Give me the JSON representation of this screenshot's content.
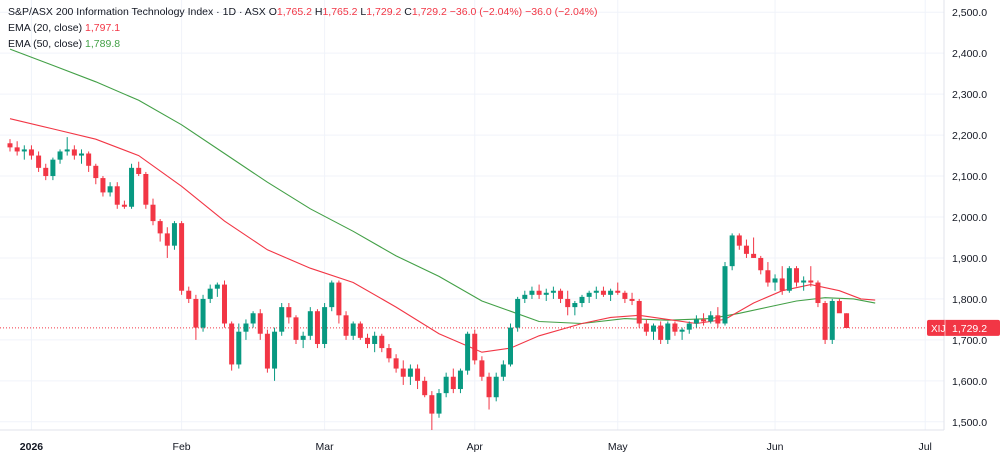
{
  "header": {
    "symbol_line": "S&P/ASX 200 Information Technology Index · 1D · ASX",
    "o_label": "O",
    "o_value": "1,765.2",
    "h_label": "H",
    "h_value": "1,765.2",
    "l_label": "L",
    "l_value": "1,729.2",
    "c_label": "C",
    "c_value": "1,729.2",
    "change": "−36.0 (−2.04%)",
    "change_repeat": "−36.0 (−2.04%)"
  },
  "indicators": [
    {
      "label": "EMA (20, close)",
      "value": "1,797.1",
      "color": "#f23645"
    },
    {
      "label": "EMA (50, close)",
      "value": "1,789.8",
      "color": "#43a047"
    }
  ],
  "price_tag": {
    "symbol": "XIJ",
    "value": "1,729.2",
    "color": "#f23645"
  },
  "colors": {
    "up": "#089981",
    "down": "#f23645",
    "ema20": "#f23645",
    "ema50": "#43a047",
    "grid": "#f0f3fa",
    "axis_text": "#131722"
  },
  "chart_data": {
    "type": "candlestick",
    "title": "S&P/ASX 200 Information Technology Index · 1D · ASX",
    "y_axis": {
      "min": 1480,
      "max": 2520,
      "ticks": [
        1500,
        1600,
        1700,
        1800,
        1900,
        2000,
        2100,
        2200,
        2300,
        2400,
        2500
      ],
      "tick_labels": [
        "1,500.0",
        "1,600.0",
        "1,700.0",
        "1,800.0",
        "1,900.0",
        "2,000.0",
        "2,100.0",
        "2,200.0",
        "2,300.0",
        "2,400.0",
        "2,500.0"
      ],
      "position": "right"
    },
    "x_axis": {
      "tick_labels": [
        "2026",
        "Feb",
        "Mar",
        "Apr",
        "May",
        "Jun",
        "Jul"
      ],
      "tick_index": [
        3,
        24,
        44,
        65,
        85,
        107,
        128
      ]
    },
    "grid": true,
    "last_price": 1729.2,
    "candles": [
      [
        2180,
        2190,
        2160,
        2170
      ],
      [
        2170,
        2185,
        2150,
        2160
      ],
      [
        2160,
        2175,
        2140,
        2165
      ],
      [
        2165,
        2175,
        2140,
        2150
      ],
      [
        2150,
        2160,
        2110,
        2120
      ],
      [
        2120,
        2130,
        2090,
        2100
      ],
      [
        2100,
        2145,
        2090,
        2140
      ],
      [
        2140,
        2165,
        2130,
        2160
      ],
      [
        2160,
        2195,
        2150,
        2165
      ],
      [
        2165,
        2175,
        2140,
        2150
      ],
      [
        2150,
        2165,
        2130,
        2155
      ],
      [
        2155,
        2160,
        2110,
        2125
      ],
      [
        2125,
        2130,
        2080,
        2095
      ],
      [
        2095,
        2100,
        2050,
        2060
      ],
      [
        2060,
        2085,
        2050,
        2075
      ],
      [
        2075,
        2085,
        2020,
        2030
      ],
      [
        2030,
        2040,
        2020,
        2025
      ],
      [
        2025,
        2130,
        2020,
        2120
      ],
      [
        2120,
        2135,
        2100,
        2105
      ],
      [
        2105,
        2110,
        2020,
        2030
      ],
      [
        2030,
        2045,
        1980,
        1990
      ],
      [
        1990,
        1995,
        1940,
        1960
      ],
      [
        1960,
        1975,
        1900,
        1930
      ],
      [
        1930,
        1990,
        1920,
        1985
      ],
      [
        1985,
        1990,
        1810,
        1820
      ],
      [
        1820,
        1830,
        1790,
        1800
      ],
      [
        1800,
        1810,
        1700,
        1730
      ],
      [
        1730,
        1810,
        1720,
        1800
      ],
      [
        1800,
        1835,
        1790,
        1825
      ],
      [
        1825,
        1840,
        1805,
        1835
      ],
      [
        1835,
        1845,
        1730,
        1740
      ],
      [
        1740,
        1745,
        1625,
        1640
      ],
      [
        1640,
        1740,
        1630,
        1720
      ],
      [
        1720,
        1750,
        1700,
        1740
      ],
      [
        1740,
        1770,
        1730,
        1765
      ],
      [
        1765,
        1775,
        1700,
        1715
      ],
      [
        1715,
        1725,
        1620,
        1630
      ],
      [
        1630,
        1730,
        1600,
        1720
      ],
      [
        1720,
        1790,
        1710,
        1780
      ],
      [
        1780,
        1790,
        1740,
        1755
      ],
      [
        1755,
        1760,
        1690,
        1700
      ],
      [
        1700,
        1720,
        1680,
        1710
      ],
      [
        1710,
        1780,
        1700,
        1770
      ],
      [
        1770,
        1775,
        1680,
        1690
      ],
      [
        1690,
        1790,
        1680,
        1780
      ],
      [
        1780,
        1845,
        1770,
        1840
      ],
      [
        1840,
        1845,
        1740,
        1760
      ],
      [
        1760,
        1770,
        1700,
        1710
      ],
      [
        1710,
        1745,
        1700,
        1740
      ],
      [
        1740,
        1745,
        1700,
        1705
      ],
      [
        1705,
        1715,
        1680,
        1690
      ],
      [
        1690,
        1720,
        1670,
        1710
      ],
      [
        1710,
        1715,
        1670,
        1680
      ],
      [
        1680,
        1690,
        1645,
        1655
      ],
      [
        1655,
        1665,
        1620,
        1630
      ],
      [
        1630,
        1650,
        1590,
        1610
      ],
      [
        1610,
        1640,
        1590,
        1630
      ],
      [
        1630,
        1640,
        1580,
        1600
      ],
      [
        1600,
        1610,
        1560,
        1565
      ],
      [
        1565,
        1575,
        1480,
        1520
      ],
      [
        1520,
        1580,
        1510,
        1570
      ],
      [
        1570,
        1620,
        1560,
        1610
      ],
      [
        1610,
        1630,
        1570,
        1580
      ],
      [
        1580,
        1630,
        1570,
        1625
      ],
      [
        1625,
        1720,
        1615,
        1715
      ],
      [
        1715,
        1725,
        1640,
        1650
      ],
      [
        1650,
        1660,
        1600,
        1610
      ],
      [
        1610,
        1620,
        1530,
        1560
      ],
      [
        1560,
        1620,
        1550,
        1610
      ],
      [
        1610,
        1650,
        1600,
        1640
      ],
      [
        1640,
        1740,
        1635,
        1730
      ],
      [
        1730,
        1805,
        1720,
        1800
      ],
      [
        1800,
        1820,
        1790,
        1810
      ],
      [
        1810,
        1830,
        1800,
        1820
      ],
      [
        1820,
        1835,
        1800,
        1810
      ],
      [
        1810,
        1825,
        1795,
        1815
      ],
      [
        1815,
        1830,
        1800,
        1820
      ],
      [
        1820,
        1825,
        1790,
        1800
      ],
      [
        1800,
        1820,
        1760,
        1780
      ],
      [
        1780,
        1795,
        1760,
        1790
      ],
      [
        1790,
        1810,
        1780,
        1805
      ],
      [
        1805,
        1820,
        1790,
        1815
      ],
      [
        1815,
        1830,
        1800,
        1820
      ],
      [
        1820,
        1830,
        1805,
        1810
      ],
      [
        1810,
        1825,
        1795,
        1820
      ],
      [
        1820,
        1840,
        1810,
        1815
      ],
      [
        1815,
        1820,
        1790,
        1800
      ],
      [
        1800,
        1815,
        1785,
        1795
      ],
      [
        1795,
        1800,
        1730,
        1740
      ],
      [
        1740,
        1750,
        1710,
        1720
      ],
      [
        1720,
        1740,
        1700,
        1735
      ],
      [
        1735,
        1745,
        1690,
        1700
      ],
      [
        1700,
        1745,
        1690,
        1740
      ],
      [
        1740,
        1745,
        1710,
        1720
      ],
      [
        1720,
        1730,
        1700,
        1725
      ],
      [
        1725,
        1745,
        1715,
        1740
      ],
      [
        1740,
        1760,
        1730,
        1750
      ],
      [
        1750,
        1765,
        1735,
        1745
      ],
      [
        1745,
        1770,
        1740,
        1760
      ],
      [
        1760,
        1780,
        1730,
        1740
      ],
      [
        1740,
        1890,
        1735,
        1880
      ],
      [
        1880,
        1960,
        1870,
        1955
      ],
      [
        1955,
        1960,
        1920,
        1930
      ],
      [
        1930,
        1945,
        1900,
        1910
      ],
      [
        1910,
        1950,
        1900,
        1900
      ],
      [
        1900,
        1905,
        1860,
        1870
      ],
      [
        1870,
        1890,
        1830,
        1840
      ],
      [
        1840,
        1860,
        1820,
        1850
      ],
      [
        1850,
        1880,
        1810,
        1820
      ],
      [
        1820,
        1880,
        1815,
        1875
      ],
      [
        1875,
        1880,
        1830,
        1840
      ],
      [
        1840,
        1855,
        1820,
        1845
      ],
      [
        1845,
        1880,
        1830,
        1840
      ],
      [
        1840,
        1845,
        1780,
        1790
      ],
      [
        1790,
        1795,
        1690,
        1700
      ],
      [
        1700,
        1800,
        1690,
        1795
      ],
      [
        1795,
        1800,
        1770,
        1765
      ],
      [
        1765,
        1765,
        1729,
        1729
      ]
    ],
    "ema20": [
      [
        0,
        2240
      ],
      [
        6,
        2215
      ],
      [
        12,
        2190
      ],
      [
        18,
        2150
      ],
      [
        24,
        2075
      ],
      [
        30,
        1990
      ],
      [
        36,
        1920
      ],
      [
        42,
        1875
      ],
      [
        48,
        1840
      ],
      [
        54,
        1780
      ],
      [
        60,
        1715
      ],
      [
        66,
        1670
      ],
      [
        70,
        1680
      ],
      [
        74,
        1710
      ],
      [
        80,
        1740
      ],
      [
        84,
        1755
      ],
      [
        88,
        1760
      ],
      [
        92,
        1750
      ],
      [
        96,
        1740
      ],
      [
        100,
        1750
      ],
      [
        104,
        1790
      ],
      [
        108,
        1820
      ],
      [
        112,
        1835
      ],
      [
        116,
        1820
      ],
      [
        119,
        1800
      ],
      [
        121,
        1797.1
      ]
    ],
    "ema50": [
      [
        0,
        2410
      ],
      [
        6,
        2370
      ],
      [
        12,
        2330
      ],
      [
        18,
        2285
      ],
      [
        24,
        2225
      ],
      [
        30,
        2155
      ],
      [
        36,
        2085
      ],
      [
        42,
        2020
      ],
      [
        48,
        1965
      ],
      [
        54,
        1905
      ],
      [
        60,
        1855
      ],
      [
        66,
        1795
      ],
      [
        70,
        1770
      ],
      [
        74,
        1745
      ],
      [
        80,
        1740
      ],
      [
        86,
        1752
      ],
      [
        92,
        1748
      ],
      [
        98,
        1752
      ],
      [
        102,
        1765
      ],
      [
        106,
        1780
      ],
      [
        110,
        1795
      ],
      [
        114,
        1803
      ],
      [
        118,
        1800
      ],
      [
        121,
        1789.8
      ]
    ]
  }
}
